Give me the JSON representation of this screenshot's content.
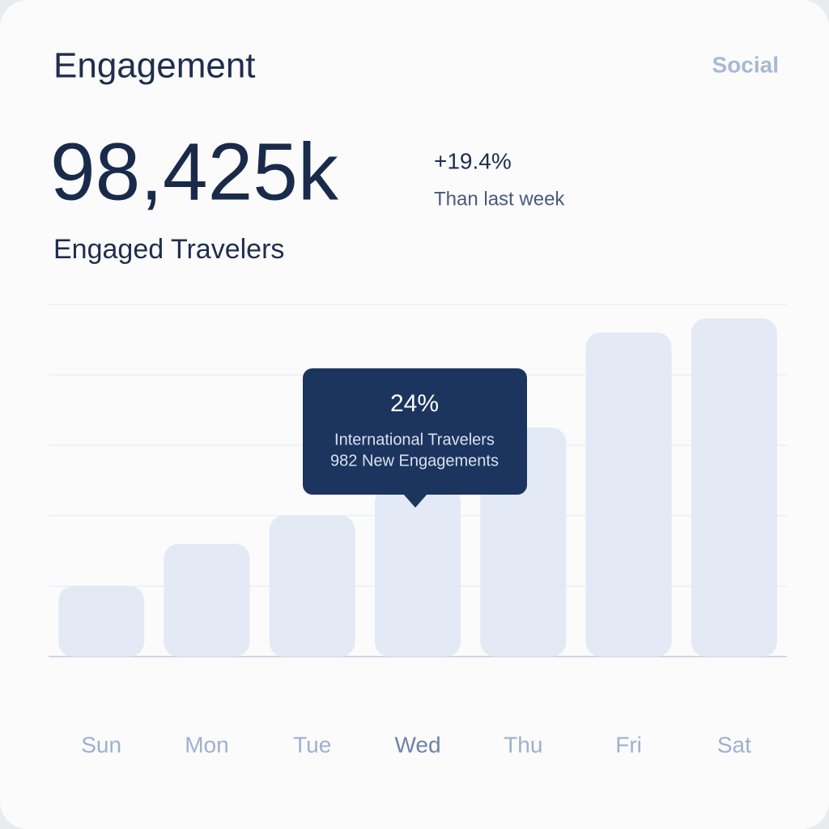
{
  "header": {
    "title": "Engagement",
    "tab": "Social",
    "metric": "98,425k",
    "change": "+19.4%",
    "change_note": "Than last week",
    "metric_label": "Engaged Travelers"
  },
  "chart_data": {
    "type": "bar",
    "categories": [
      "Sun",
      "Mon",
      "Tue",
      "Wed",
      "Thu",
      "Fri",
      "Sat"
    ],
    "values": [
      1.0,
      1.6,
      2.0,
      2.4,
      3.25,
      4.6,
      4.8
    ],
    "color": "#e3e9f5",
    "ylim": [
      0,
      5
    ],
    "grid_lines": [
      0,
      1,
      2,
      3,
      4,
      5
    ],
    "tooltip": {
      "title": "24%",
      "line1": "International Travelers",
      "line2": "982 New Engagements"
    }
  }
}
